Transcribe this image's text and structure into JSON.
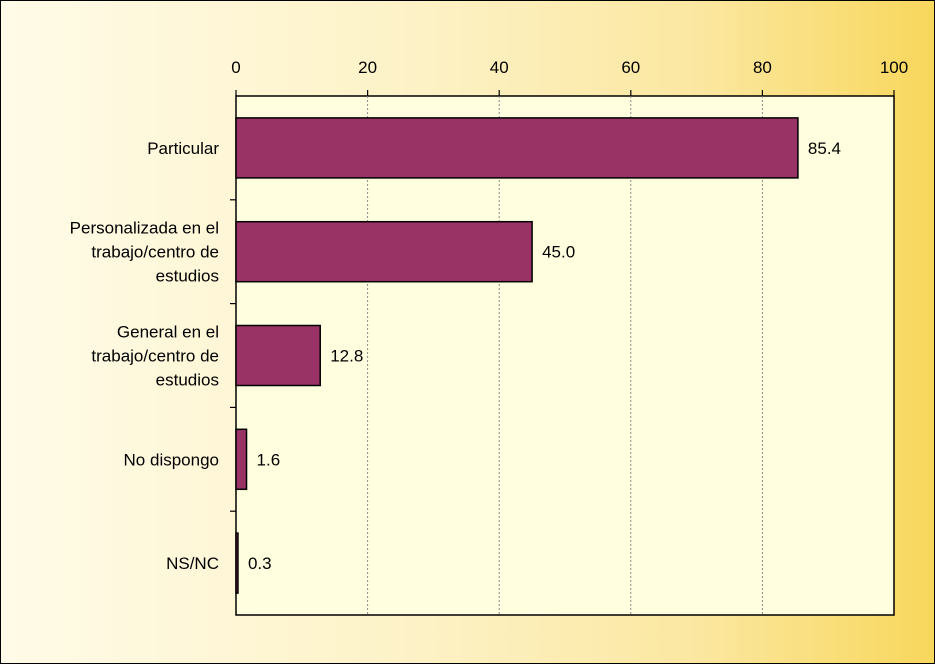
{
  "chart_data": {
    "type": "bar",
    "orientation": "horizontal",
    "categories": [
      [
        "Particular"
      ],
      [
        "Personalizada en el",
        "trabajo/centro de",
        "estudios"
      ],
      [
        "General en el",
        "trabajo/centro de",
        "estudios"
      ],
      [
        "No dispongo"
      ],
      [
        "NS/NC"
      ]
    ],
    "values": [
      85.4,
      45.0,
      12.8,
      1.6,
      0.3
    ],
    "value_labels": [
      "85.4",
      "45.0",
      "12.8",
      "1.6",
      "0.3"
    ],
    "x_ticks": [
      "0",
      "20",
      "40",
      "60",
      "80",
      "100"
    ],
    "xlim": [
      0,
      100
    ],
    "grid": "vertical dashed",
    "x_axis_position": "top",
    "legend": "none",
    "colors": {
      "bar_fill": "#993366",
      "plot_background": "#ffffe0",
      "gradient_start": "#fffbe8",
      "gradient_end": "#f8d75c"
    }
  }
}
